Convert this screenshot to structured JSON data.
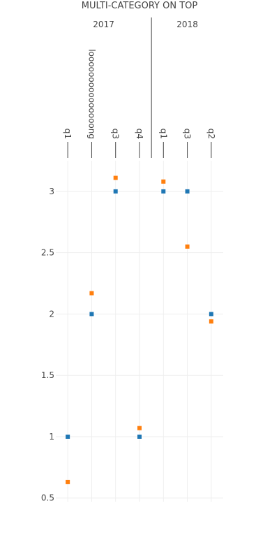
{
  "chart_data": {
    "type": "scatter",
    "title": "MULTI-CATEGORY ON TOP",
    "xaxis_side": "top",
    "groups": [
      {
        "label": "2017",
        "categories": [
          "q1",
          "looooooooooooooong",
          "q3",
          "q4"
        ]
      },
      {
        "label": "2018",
        "categories": [
          "q1",
          "q3",
          "q2"
        ]
      }
    ],
    "categories": [
      "q1",
      "looooooooooooooong",
      "q3",
      "q4",
      "q1",
      "q3",
      "q2"
    ],
    "series": [
      {
        "color": "#1f77b4",
        "marker": "square",
        "values": [
          1,
          2,
          3,
          1,
          3,
          3,
          2
        ]
      },
      {
        "color": "#ff7f0e",
        "marker": "square",
        "values": [
          0.63,
          2.17,
          3.11,
          1.07,
          3.08,
          2.55,
          1.94
        ]
      }
    ],
    "yticks": [
      "0.5",
      "1",
      "1.5",
      "2",
      "2.5",
      "3"
    ],
    "ylim": [
      0.47,
      3.25
    ],
    "grid": true,
    "legend": "none"
  }
}
